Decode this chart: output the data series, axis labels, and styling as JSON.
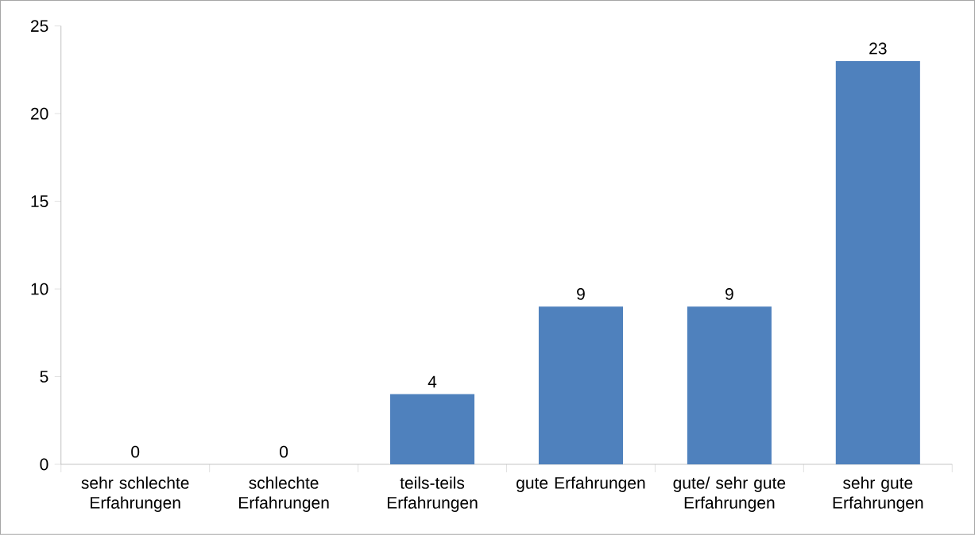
{
  "chart_data": {
    "type": "bar",
    "categories": [
      "sehr schlechte Erfahrungen",
      "schlechte Erfahrungen",
      "teils-teils Erfahrungen",
      "gute Erfahrungen",
      "gute/ sehr gute Erfahrungen",
      "sehr gute Erfahrungen"
    ],
    "values": [
      0,
      0,
      4,
      9,
      9,
      23
    ],
    "color": "#4f81bd",
    "ylim": [
      0,
      25
    ],
    "yticks": [
      0,
      5,
      10,
      15,
      20,
      25
    ],
    "data_labels": true
  }
}
